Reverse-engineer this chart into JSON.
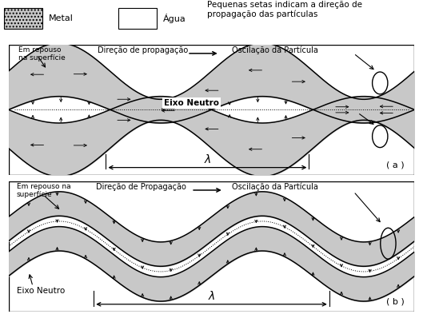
{
  "legend_metal_color": "#c8c8c8",
  "legend_water_color": "#ffffff",
  "wave_fill_color": "#c8c8c8",
  "background_color": "#ffffff",
  "title_text": "Pequenas setas indicam a direção de\npropagação das partículas",
  "legend_metal": "Metal",
  "legend_water": "Água",
  "label_a_rest": "Em repouso\nna superfície",
  "label_a_dir": "Direção de propagação",
  "label_a_osc": "Oscilação da Partícula",
  "label_a_eixo": "Eixo Neutro",
  "label_a_lambda": "λ",
  "label_b_rest": "Em repouso na\nsuperfície",
  "label_b_dir": "Direção de Propagação",
  "label_b_osc": "Oscilação da Partícula",
  "label_b_eixo": "Eixo Neutro",
  "label_b_lambda": "λ",
  "panel_a_label": "( a )",
  "panel_b_label": "( b )"
}
